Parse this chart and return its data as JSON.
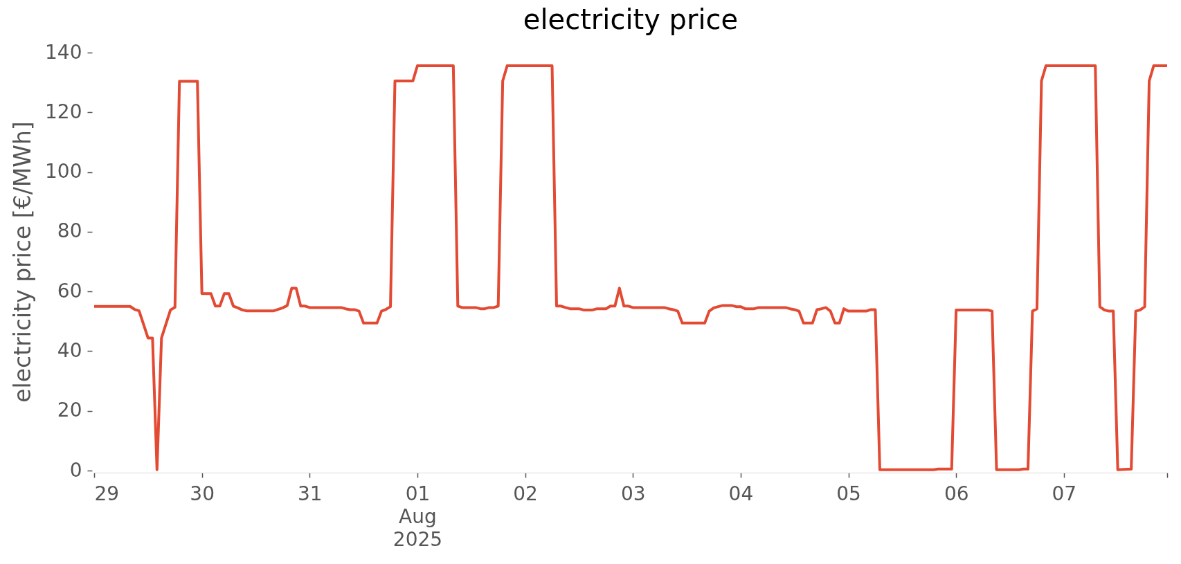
{
  "chart_data": {
    "type": "line",
    "title": "electricity price",
    "ylabel": "electricity price [€/MWh]",
    "x": [
      "2025-07-29T00:00",
      "2025-07-29T08:00",
      "2025-07-29T09:00",
      "2025-07-29T10:00",
      "2025-07-29T11:00",
      "2025-07-29T12:00",
      "2025-07-29T13:00",
      "2025-07-29T14:00",
      "2025-07-29T15:00",
      "2025-07-29T17:00",
      "2025-07-29T18:00",
      "2025-07-29T19:00",
      "2025-07-29T23:00",
      "2025-07-30T00:00",
      "2025-07-30T02:00",
      "2025-07-30T03:00",
      "2025-07-30T04:00",
      "2025-07-30T05:00",
      "2025-07-30T06:00",
      "2025-07-30T07:00",
      "2025-07-30T08:00",
      "2025-07-30T09:00",
      "2025-07-30T10:00",
      "2025-07-30T16:00",
      "2025-07-30T18:00",
      "2025-07-30T19:00",
      "2025-07-30T20:00",
      "2025-07-30T21:00",
      "2025-07-30T22:00",
      "2025-07-30T23:00",
      "2025-07-31T00:00",
      "2025-07-31T07:00",
      "2025-07-31T08:00",
      "2025-07-31T09:00",
      "2025-07-31T10:00",
      "2025-07-31T11:00",
      "2025-07-31T12:00",
      "2025-07-31T15:00",
      "2025-07-31T16:00",
      "2025-07-31T17:00",
      "2025-07-31T18:00",
      "2025-07-31T19:00",
      "2025-07-31T23:00",
      "2025-08-01T00:00",
      "2025-08-01T08:00",
      "2025-08-01T09:00",
      "2025-08-01T10:00",
      "2025-08-01T13:00",
      "2025-08-01T14:00",
      "2025-08-01T15:00",
      "2025-08-01T16:00",
      "2025-08-01T17:00",
      "2025-08-01T18:00",
      "2025-08-01T19:00",
      "2025-08-01T20:00",
      "2025-08-02T06:00",
      "2025-08-02T07:00",
      "2025-08-02T08:00",
      "2025-08-02T09:00",
      "2025-08-02T10:00",
      "2025-08-02T12:00",
      "2025-08-02T13:00",
      "2025-08-02T15:00",
      "2025-08-02T16:00",
      "2025-08-02T18:00",
      "2025-08-02T19:00",
      "2025-08-02T20:00",
      "2025-08-02T21:00",
      "2025-08-02T22:00",
      "2025-08-02T23:00",
      "2025-08-03T00:00",
      "2025-08-03T07:00",
      "2025-08-03T08:00",
      "2025-08-03T09:00",
      "2025-08-03T10:00",
      "2025-08-03T11:00",
      "2025-08-03T16:00",
      "2025-08-03T17:00",
      "2025-08-03T18:00",
      "2025-08-03T19:00",
      "2025-08-03T20:00",
      "2025-08-03T22:00",
      "2025-08-03T23:00",
      "2025-08-04T00:00",
      "2025-08-04T01:00",
      "2025-08-04T03:00",
      "2025-08-04T04:00",
      "2025-08-04T10:00",
      "2025-08-04T11:00",
      "2025-08-04T12:00",
      "2025-08-04T13:00",
      "2025-08-04T14:00",
      "2025-08-04T16:00",
      "2025-08-04T17:00",
      "2025-08-04T18:00",
      "2025-08-04T19:00",
      "2025-08-04T20:00",
      "2025-08-04T21:00",
      "2025-08-04T22:00",
      "2025-08-04T23:00",
      "2025-08-05T00:00",
      "2025-08-05T04:00",
      "2025-08-05T05:00",
      "2025-08-05T06:00",
      "2025-08-05T07:00",
      "2025-08-05T19:00",
      "2025-08-05T20:00",
      "2025-08-05T23:00",
      "2025-08-06T00:00",
      "2025-08-06T07:00",
      "2025-08-06T08:00",
      "2025-08-06T09:00",
      "2025-08-06T14:00",
      "2025-08-06T15:00",
      "2025-08-06T16:00",
      "2025-08-06T17:00",
      "2025-08-06T18:00",
      "2025-08-06T19:00",
      "2025-08-06T20:00",
      "2025-08-07T07:00",
      "2025-08-07T08:00",
      "2025-08-07T09:00",
      "2025-08-07T10:00",
      "2025-08-07T11:00",
      "2025-08-07T12:00",
      "2025-08-07T15:00",
      "2025-08-07T16:00",
      "2025-08-07T17:00",
      "2025-08-07T18:00",
      "2025-08-07T19:00",
      "2025-08-07T20:00",
      "2025-08-07T23:00"
    ],
    "series": [
      {
        "color": "#e24a33",
        "values": [
          55,
          55,
          54,
          53.5,
          49,
          44.4,
          44.4,
          0.3,
          44.4,
          53.8,
          54.7,
          130.4,
          130.4,
          59.3,
          59.3,
          55.1,
          55.1,
          59.3,
          59.3,
          55.1,
          54.5,
          53.8,
          53.5,
          53.5,
          54.5,
          55.3,
          61.1,
          61.1,
          55.1,
          55.1,
          54.6,
          54.6,
          54.2,
          53.9,
          53.9,
          53.4,
          49.4,
          49.4,
          53.4,
          54,
          54.9,
          130.5,
          130.5,
          135.6,
          135.6,
          55.1,
          54.6,
          54.6,
          54.2,
          54.2,
          54.6,
          54.6,
          55.1,
          130.5,
          135.6,
          135.6,
          55.1,
          55.1,
          54.6,
          54.2,
          54.2,
          53.8,
          53.8,
          54.2,
          54.2,
          55.1,
          55.1,
          61.1,
          55.1,
          55.1,
          54.6,
          54.6,
          54.2,
          53.9,
          53.4,
          49.4,
          49.4,
          53.4,
          54.5,
          54.9,
          55.3,
          55.3,
          54.9,
          54.9,
          54.2,
          54.2,
          54.6,
          54.6,
          54.2,
          53.9,
          53.4,
          49.4,
          49.4,
          53.9,
          54.2,
          54.6,
          53.4,
          49.4,
          49.4,
          54.2,
          53.4,
          53.4,
          53.9,
          53.9,
          0.3,
          0.3,
          0.5,
          0.5,
          53.8,
          53.8,
          53.4,
          0.3,
          0.3,
          0.5,
          0.5,
          53.4,
          54.2,
          130.5,
          135.6,
          135.6,
          54.9,
          53.8,
          53.4,
          53.4,
          0.3,
          0.5,
          53.4,
          53.8,
          54.9,
          130.5,
          135.6,
          135.6
        ]
      }
    ],
    "xlim": [
      "2025-07-29T00:00",
      "2025-08-07T23:00"
    ],
    "xticks": [
      {
        "value": "2025-07-29T00:00",
        "label": "29"
      },
      {
        "value": "2025-07-30T00:00",
        "label": "30"
      },
      {
        "value": "2025-07-31T00:00",
        "label": "31"
      },
      {
        "value": "2025-08-01T00:00",
        "label": "01\nAug\n2025"
      },
      {
        "value": "2025-08-02T00:00",
        "label": "02"
      },
      {
        "value": "2025-08-03T00:00",
        "label": "03"
      },
      {
        "value": "2025-08-04T00:00",
        "label": "04"
      },
      {
        "value": "2025-08-05T00:00",
        "label": "05"
      },
      {
        "value": "2025-08-06T00:00",
        "label": "06"
      },
      {
        "value": "2025-08-07T00:00",
        "label": "07"
      },
      {
        "value": "2025-08-07T23:00",
        "label": null
      }
    ],
    "ylim": [
      0,
      140
    ],
    "yticks": [
      0,
      20,
      40,
      60,
      80,
      100,
      120,
      140
    ]
  }
}
